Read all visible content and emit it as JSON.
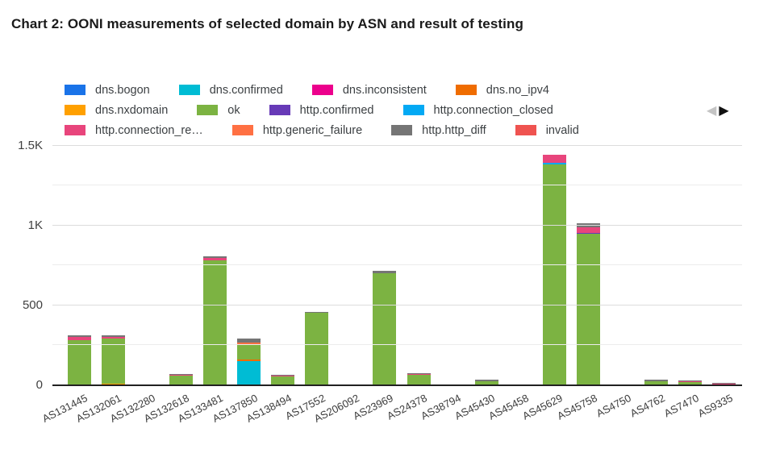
{
  "chart_data": {
    "type": "bar",
    "variant": "stacked",
    "title": "Chart 2: OONI measurements of selected domain by ASN and result of testing",
    "categories": [
      "AS131445",
      "AS132061",
      "AS132280",
      "AS132618",
      "AS133481",
      "AS137850",
      "AS138494",
      "AS17552",
      "AS206092",
      "AS23969",
      "AS24378",
      "AS38794",
      "AS45430",
      "AS45458",
      "AS45629",
      "AS45758",
      "AS4750",
      "AS4762",
      "AS7470",
      "AS9335"
    ],
    "series": [
      {
        "name": "dns.bogon",
        "legend_label": "dns.bogon",
        "color": "#1A73E8",
        "values": [
          0,
          0,
          0,
          0,
          0,
          0,
          0,
          0,
          0,
          0,
          0,
          0,
          0,
          0,
          0,
          0,
          0,
          0,
          0,
          0
        ]
      },
      {
        "name": "dns.confirmed",
        "legend_label": "dns.confirmed",
        "color": "#00BCD4",
        "values": [
          0,
          0,
          0,
          0,
          0,
          150,
          0,
          0,
          0,
          0,
          0,
          0,
          0,
          0,
          0,
          0,
          0,
          0,
          0,
          0
        ]
      },
      {
        "name": "dns.inconsistent",
        "legend_label": "dns.inconsistent",
        "color": "#EC008C",
        "values": [
          0,
          0,
          0,
          0,
          0,
          0,
          0,
          0,
          0,
          0,
          0,
          0,
          0,
          0,
          0,
          0,
          0,
          0,
          0,
          0
        ]
      },
      {
        "name": "dns.no_ipv4",
        "legend_label": "dns.no_ipv4",
        "color": "#EF6C00",
        "values": [
          0,
          0,
          0,
          0,
          0,
          10,
          0,
          0,
          0,
          0,
          0,
          0,
          0,
          0,
          0,
          0,
          0,
          0,
          0,
          0
        ]
      },
      {
        "name": "dns.nxdomain",
        "legend_label": "dns.nxdomain",
        "color": "#FFA000",
        "values": [
          0,
          8,
          0,
          0,
          0,
          0,
          0,
          0,
          0,
          0,
          0,
          0,
          0,
          0,
          0,
          0,
          0,
          0,
          0,
          0
        ]
      },
      {
        "name": "ok",
        "legend_label": "ok",
        "color": "#7CB342",
        "values": [
          285,
          285,
          0,
          60,
          785,
          95,
          55,
          455,
          0,
          700,
          65,
          0,
          25,
          0,
          1385,
          950,
          0,
          25,
          18,
          3
        ]
      },
      {
        "name": "http.confirmed",
        "legend_label": "http.confirmed",
        "color": "#673AB7",
        "values": [
          0,
          0,
          0,
          0,
          0,
          0,
          0,
          0,
          0,
          0,
          0,
          0,
          0,
          0,
          0,
          5,
          0,
          0,
          0,
          0
        ]
      },
      {
        "name": "http.connection_closed",
        "legend_label": "http.connection_closed",
        "color": "#03A9F4",
        "values": [
          0,
          0,
          0,
          0,
          0,
          0,
          0,
          0,
          0,
          0,
          0,
          0,
          0,
          0,
          10,
          0,
          0,
          0,
          0,
          0
        ]
      },
      {
        "name": "http.connection_reset",
        "legend_label": "http.connection_re…",
        "color": "#E8457C",
        "values": [
          20,
          10,
          0,
          5,
          15,
          5,
          5,
          0,
          0,
          0,
          8,
          0,
          0,
          0,
          50,
          35,
          0,
          0,
          6,
          5
        ]
      },
      {
        "name": "http.generic_failure",
        "legend_label": "http.generic_failure",
        "color": "#FF7043",
        "values": [
          0,
          0,
          0,
          0,
          0,
          10,
          0,
          0,
          0,
          0,
          0,
          0,
          0,
          0,
          0,
          0,
          0,
          0,
          0,
          0
        ]
      },
      {
        "name": "http.http_diff",
        "legend_label": "http.http_diff",
        "color": "#757575",
        "values": [
          8,
          8,
          0,
          5,
          8,
          25,
          5,
          5,
          0,
          15,
          5,
          0,
          8,
          0,
          0,
          25,
          0,
          10,
          6,
          3
        ]
      },
      {
        "name": "invalid",
        "legend_label": "invalid",
        "color": "#EF5350",
        "values": [
          0,
          0,
          5,
          0,
          0,
          0,
          0,
          0,
          0,
          0,
          0,
          0,
          0,
          0,
          0,
          0,
          0,
          0,
          0,
          0
        ]
      }
    ],
    "y_axis": {
      "ticks": [
        {
          "value": 0,
          "label": "0"
        },
        {
          "value": 500,
          "label": "500"
        },
        {
          "value": 1000,
          "label": "1K"
        },
        {
          "value": 1500,
          "label": "1.5K"
        }
      ],
      "minor_gridlines": [
        250,
        750,
        1250
      ]
    },
    "ylim": [
      0,
      1565
    ],
    "legend": {
      "position": "top",
      "items_per_row": 4,
      "prev_icon": "◀",
      "next_icon": "▶"
    },
    "grid": true,
    "xlabel": "",
    "ylabel": ""
  }
}
